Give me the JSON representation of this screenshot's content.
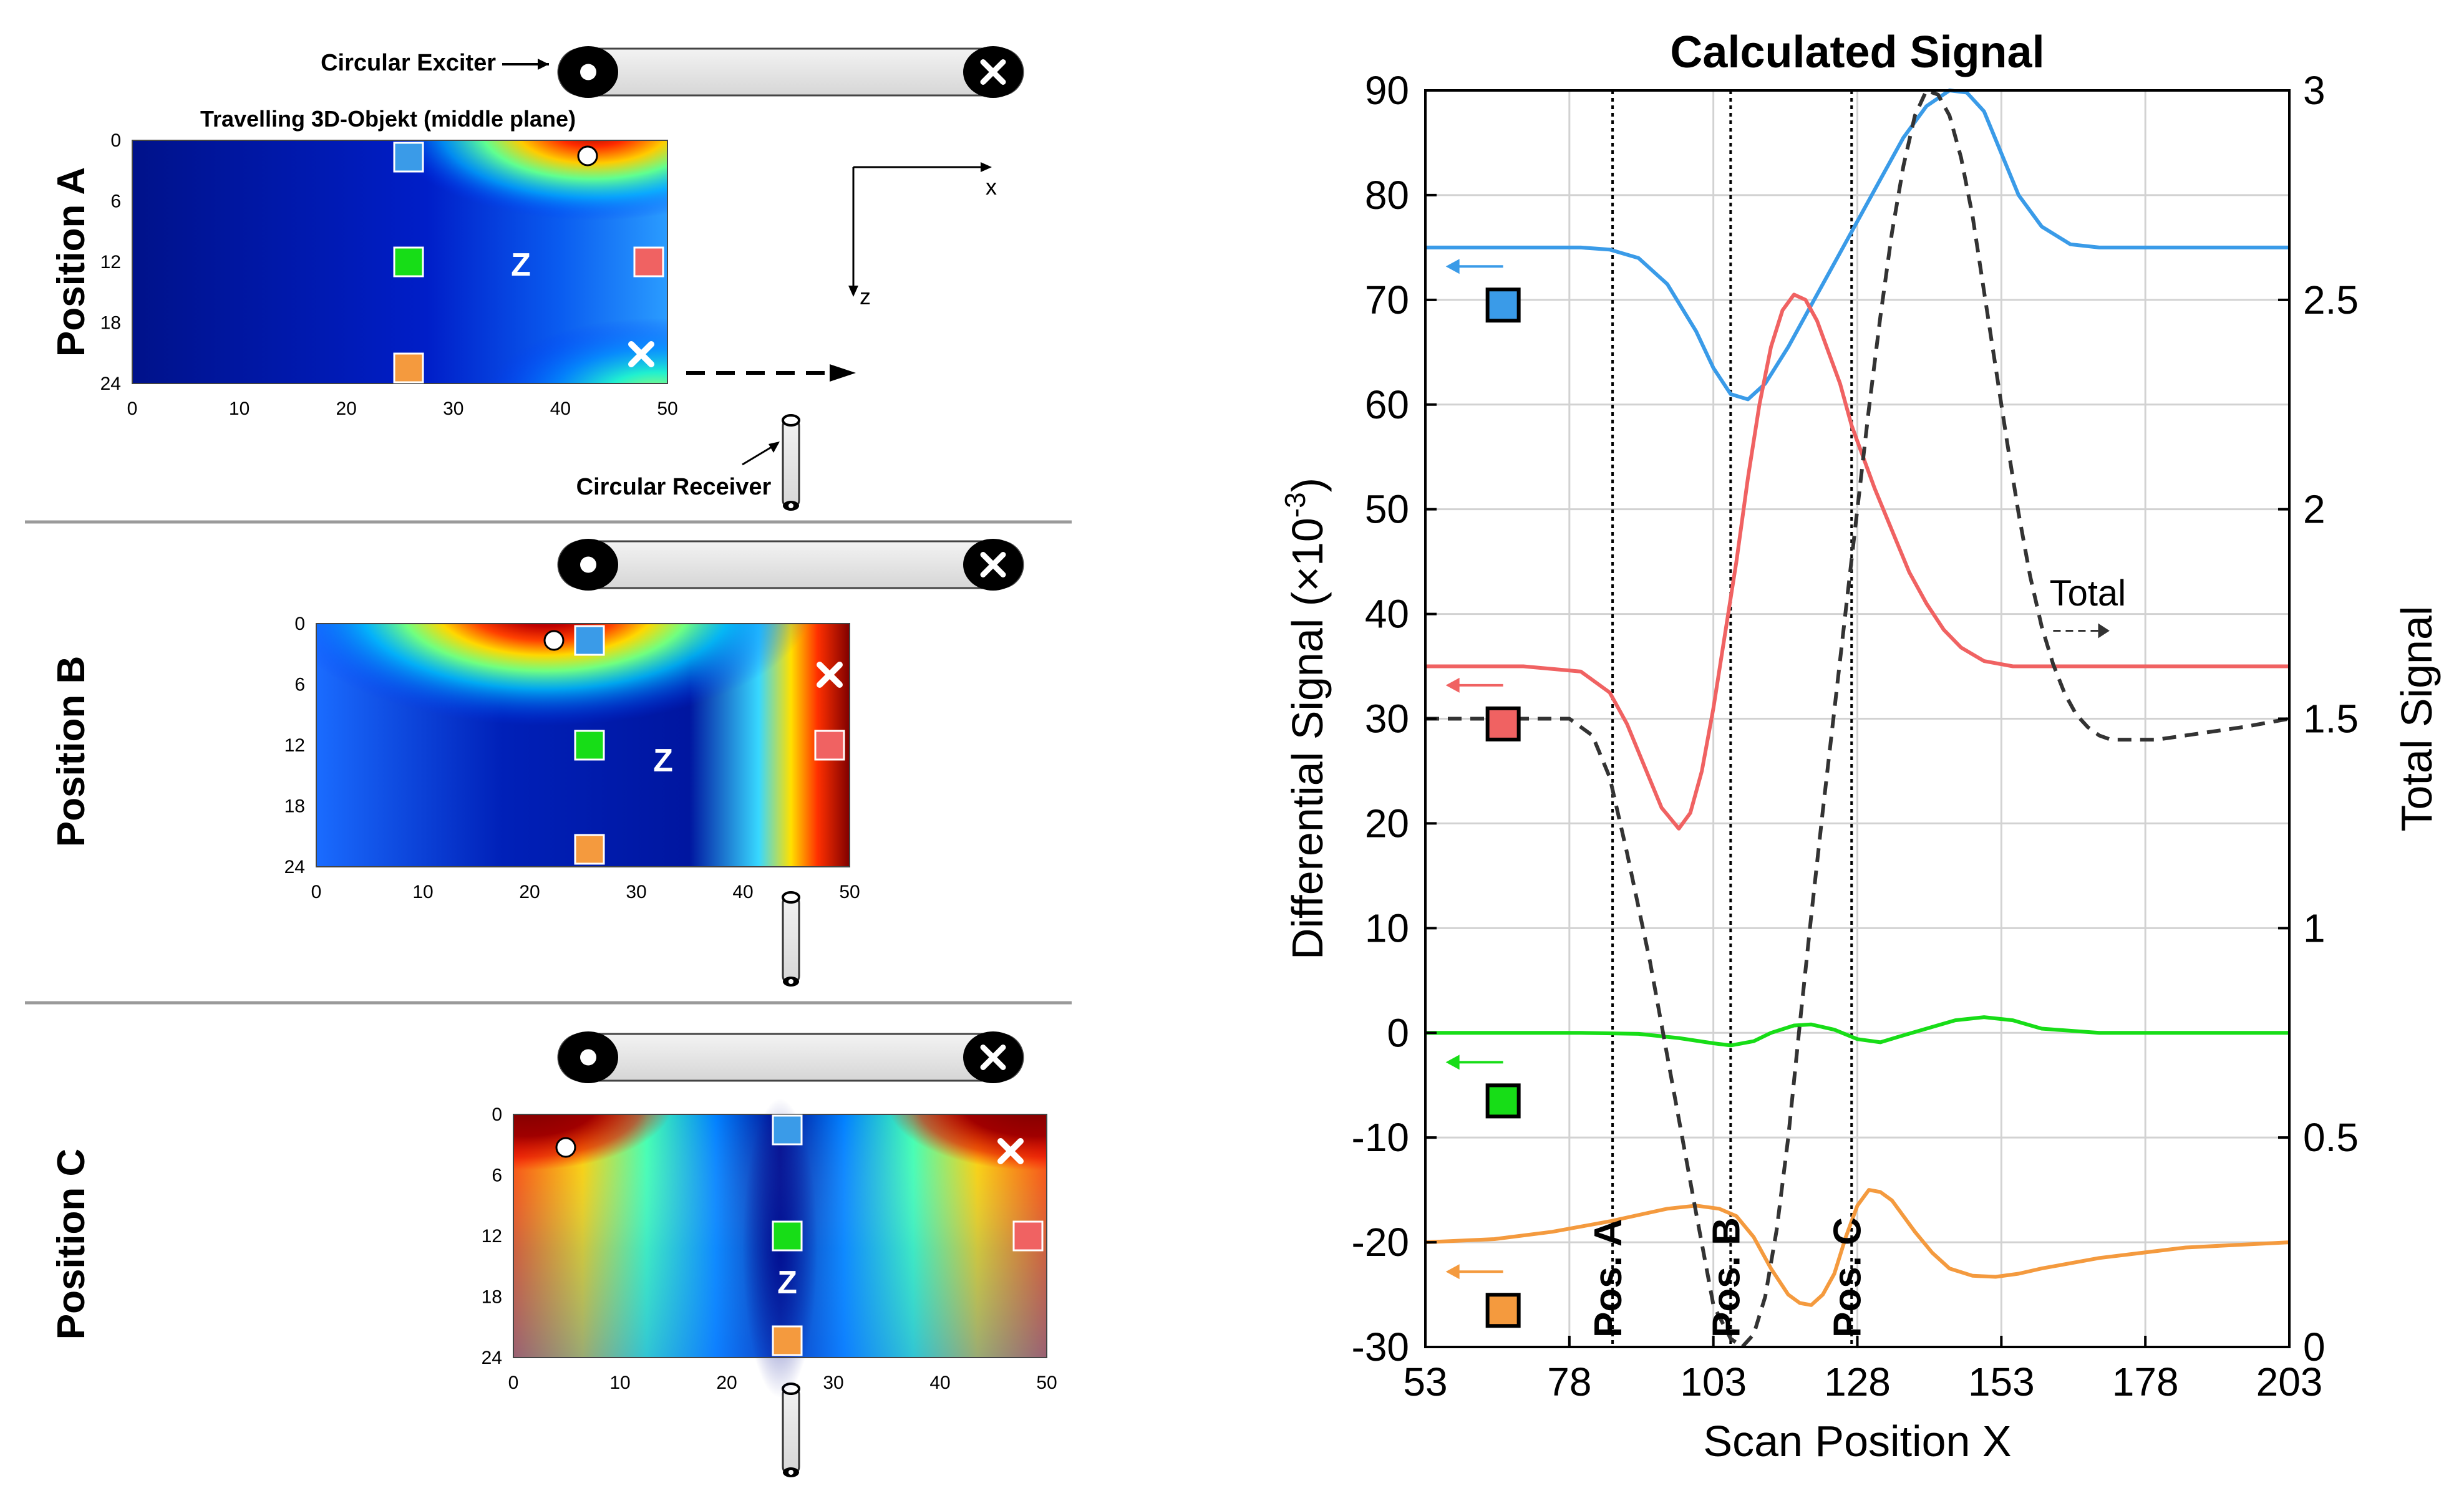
{
  "colors": {
    "blue": "#3a9be8",
    "red": "#f06262",
    "green": "#17dd17",
    "orange": "#f49a3e",
    "total": "#333333",
    "grid": "#d2d2d2",
    "divider": "#9a9a9a",
    "tube_fill": "#e6e6e6"
  },
  "icons": {
    "exciter_end": "circle-dot-icon",
    "receiver_end": "circle-x-icon",
    "object_exciter_marker": "white-dot-icon",
    "object_receiver_marker": "white-x-icon"
  },
  "left_panel": {
    "exciter_label": "Circular Exciter",
    "receiver_label": "Circular Receiver",
    "object_label": "Travelling 3D-Objekt (middle plane)",
    "axes_x_label": "x",
    "axes_z_label": "z",
    "center_label": "Z",
    "x_ticks": [
      "0",
      "10",
      "20",
      "30",
      "40",
      "50"
    ],
    "y_ticks": [
      "0",
      "6",
      "12",
      "18",
      "24"
    ],
    "positions": [
      {
        "label": "Position A",
        "object_offset_x": 0
      },
      {
        "label": "Position B",
        "object_offset_x": 18
      },
      {
        "label": "Position C",
        "object_offset_x": 36
      }
    ]
  },
  "chart_data": {
    "type": "line",
    "title": "Calculated Signal",
    "xlabel": "Scan Position X",
    "ylabel_left_main": "Differential Signal (×10",
    "ylabel_left_sup": "-3",
    "ylabel_left_end": ")",
    "ylabel_right": "Total Signal",
    "xlim": [
      53,
      203
    ],
    "ylim_left": [
      -30,
      90
    ],
    "ylim_right": [
      0,
      3
    ],
    "x_ticks": [
      53,
      78,
      103,
      128,
      153,
      178,
      203
    ],
    "y_ticks_left": [
      -30,
      -20,
      -10,
      0,
      10,
      20,
      30,
      40,
      50,
      60,
      70,
      80,
      90
    ],
    "y_ticks_right": [
      0,
      0.5,
      1,
      1.5,
      2,
      2.5,
      3
    ],
    "grid": true,
    "vlines": [
      {
        "x": 85.5,
        "label": "Pos. A"
      },
      {
        "x": 106,
        "label": "Pos. B"
      },
      {
        "x": 127,
        "label": "Pos. C"
      }
    ],
    "total_annotation": "Total",
    "series": [
      {
        "key": "blue",
        "axis": "left",
        "legend_y": 69.5,
        "x": [
          53,
          70,
          80,
          85,
          90,
          95,
          100,
          103,
          106,
          109,
          112,
          116,
          120,
          124,
          128,
          132,
          136,
          140,
          144,
          147,
          150,
          153,
          156,
          160,
          165,
          170,
          178,
          190,
          203
        ],
        "y": [
          75,
          75,
          75,
          74.8,
          74,
          71.5,
          67,
          63.5,
          61,
          60.5,
          62,
          65.5,
          69.5,
          73.5,
          77.5,
          81.5,
          85.5,
          88.5,
          90,
          89.8,
          88,
          84,
          80,
          77,
          75.3,
          75,
          75,
          75,
          75
        ]
      },
      {
        "key": "red",
        "axis": "left",
        "legend_y": 29.5,
        "x": [
          53,
          70,
          80,
          85,
          88,
          91,
          94,
          97,
          99,
          101,
          103,
          105,
          107,
          109,
          111,
          113,
          115,
          117,
          119,
          121,
          123,
          125,
          127,
          129,
          131,
          134,
          137,
          140,
          143,
          146,
          150,
          155,
          160,
          170,
          185,
          203
        ],
        "y": [
          35,
          35,
          34.5,
          32.5,
          29.5,
          25.5,
          21.5,
          19.5,
          21,
          25,
          31,
          38,
          45,
          53,
          60,
          65.5,
          69,
          70.5,
          70,
          68,
          65,
          62,
          58,
          55,
          52,
          48,
          44,
          41,
          38.5,
          36.8,
          35.5,
          35,
          35,
          35,
          35,
          35
        ]
      },
      {
        "key": "green",
        "axis": "left",
        "legend_y": -6.5,
        "x": [
          53,
          80,
          90,
          97,
          103,
          106,
          110,
          113,
          117,
          120,
          124,
          128,
          132,
          135,
          140,
          145,
          150,
          155,
          160,
          170,
          203
        ],
        "y": [
          0,
          0,
          -0.1,
          -0.5,
          -1,
          -1.2,
          -0.8,
          0,
          0.7,
          0.8,
          0.3,
          -0.6,
          -0.9,
          -0.4,
          0.4,
          1.2,
          1.5,
          1.2,
          0.4,
          0,
          0
        ]
      },
      {
        "key": "orange",
        "axis": "left",
        "legend_y": -26.5,
        "x": [
          53,
          65,
          75,
          85,
          95,
          100,
          104,
          107,
          110,
          113,
          116,
          118,
          120,
          122,
          124,
          126,
          128,
          130,
          132,
          134,
          136,
          138,
          141,
          144,
          148,
          152,
          156,
          160,
          170,
          185,
          203
        ],
        "y": [
          -20,
          -19.7,
          -19,
          -18,
          -16.8,
          -16.5,
          -16.8,
          -17.5,
          -19.5,
          -22.5,
          -25,
          -25.8,
          -26,
          -25,
          -23,
          -19.5,
          -16.5,
          -15,
          -15.2,
          -16,
          -17.5,
          -19,
          -21,
          -22.5,
          -23.2,
          -23.3,
          -23,
          -22.5,
          -21.5,
          -20.5,
          -20
        ]
      },
      {
        "key": "total",
        "axis": "right",
        "dashed": true,
        "x": [
          53,
          70,
          78,
          82,
          85,
          88,
          92,
          96,
          100,
          103,
          106,
          108,
          110,
          112,
          114,
          116,
          118,
          120,
          122,
          124,
          126,
          128,
          130,
          132,
          134,
          136,
          138,
          140,
          142,
          144,
          146,
          148,
          150,
          152,
          154,
          156,
          158,
          160,
          162,
          164,
          166,
          168,
          170,
          172,
          175,
          180,
          185,
          195,
          203
        ],
        "y": [
          1.5,
          1.5,
          1.5,
          1.46,
          1.36,
          1.18,
          0.92,
          0.62,
          0.32,
          0.1,
          0.02,
          0.0,
          0.03,
          0.12,
          0.28,
          0.5,
          0.77,
          1.03,
          1.28,
          1.52,
          1.76,
          2.0,
          2.24,
          2.46,
          2.66,
          2.82,
          2.94,
          3.0,
          2.99,
          2.94,
          2.84,
          2.7,
          2.52,
          2.34,
          2.16,
          1.99,
          1.84,
          1.72,
          1.63,
          1.56,
          1.51,
          1.48,
          1.46,
          1.45,
          1.45,
          1.45,
          1.46,
          1.48,
          1.5
        ]
      }
    ]
  }
}
